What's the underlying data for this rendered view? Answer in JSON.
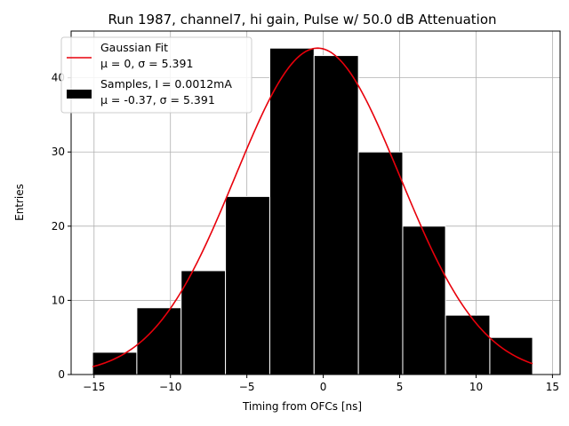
{
  "chart_data": {
    "type": "bar",
    "title": "Run 1987, channel7, hi gain, Pulse w/ 50.0 dB Attenuation",
    "xlabel": "Timing from OFCs [ns]",
    "ylabel": "Entries",
    "xlim": [
      -16.5,
      15.5
    ],
    "ylim": [
      0,
      46.3
    ],
    "x_ticks": [
      -15,
      -10,
      -5,
      0,
      5,
      10,
      15
    ],
    "x_tick_labels": [
      "−15",
      "−10",
      "−5",
      "0",
      "5",
      "10",
      "15"
    ],
    "y_ticks": [
      0,
      10,
      20,
      30,
      40
    ],
    "y_tick_labels": [
      "0",
      "10",
      "20",
      "30",
      "40"
    ],
    "grid": true,
    "legend_position": "upper-left",
    "bins": [
      {
        "x0": -15.1,
        "x1": -12.2,
        "value": 3
      },
      {
        "x0": -12.2,
        "x1": -9.3,
        "value": 9
      },
      {
        "x0": -9.3,
        "x1": -6.4,
        "value": 14
      },
      {
        "x0": -6.4,
        "x1": -3.5,
        "value": 24
      },
      {
        "x0": -3.5,
        "x1": -0.6,
        "value": 44
      },
      {
        "x0": -0.6,
        "x1": 2.3,
        "value": 43
      },
      {
        "x0": 2.3,
        "x1": 5.2,
        "value": 30
      },
      {
        "x0": 5.2,
        "x1": 8.0,
        "value": 20
      },
      {
        "x0": 8.0,
        "x1": 10.9,
        "value": 8
      },
      {
        "x0": 10.9,
        "x1": 13.7,
        "value": 5
      }
    ],
    "series": [
      {
        "kind": "histogram",
        "legend_line1": "Samples, I = 0.0012mA",
        "legend_line2": "μ = -0.37, σ = 5.391",
        "color": "#000000",
        "edge_color": "#ffffff"
      },
      {
        "kind": "gaussian-curve",
        "legend_line1": "Gaussian Fit",
        "legend_line2": "μ = 0, σ = 5.391",
        "color": "#e8000b",
        "x_range": [
          -15.1,
          13.7
        ],
        "mean": -0.37,
        "sigma": 5.391,
        "amplitude": 44
      }
    ]
  }
}
